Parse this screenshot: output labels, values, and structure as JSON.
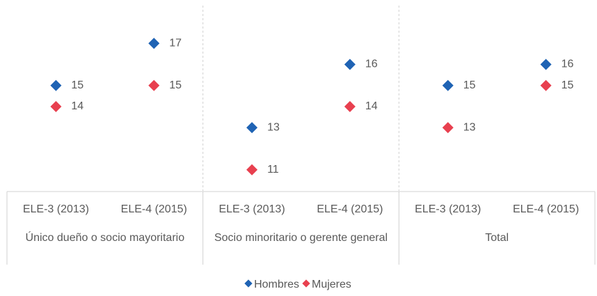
{
  "chart_data": {
    "type": "dot",
    "categories": [
      "ELE-3 (2013)",
      "ELE-4 (2015)",
      "ELE-3 (2013)",
      "ELE-4 (2015)",
      "ELE-3 (2013)",
      "ELE-4 (2015)"
    ],
    "groups": [
      "Único dueño o socio mayoritario",
      "Socio minoritario o gerente general",
      "Total"
    ],
    "series": [
      {
        "name": "Hombres",
        "color": "#1f63b4",
        "values": [
          15,
          17,
          13,
          16,
          15,
          16
        ]
      },
      {
        "name": "Mujeres",
        "color": "#e8404f",
        "values": [
          14,
          15,
          11,
          14,
          13,
          15
        ]
      }
    ],
    "ylim": [
      10,
      18
    ],
    "legend": "bottom"
  }
}
